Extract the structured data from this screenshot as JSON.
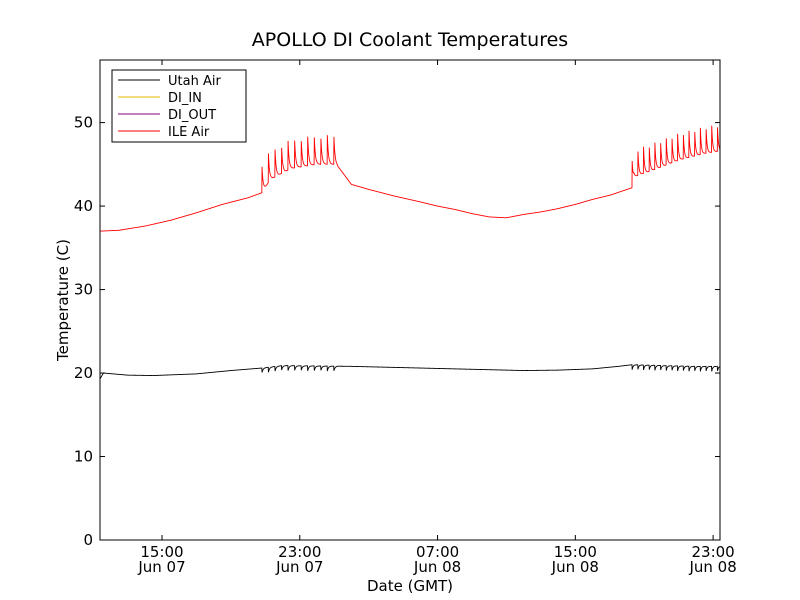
{
  "chart_data": {
    "type": "line",
    "title": "APOLLO DI Coolant Temperatures",
    "xlabel": "Date (GMT)",
    "ylabel": "Temperature (C)",
    "x_units": "hours since Jun 07 00:00 GMT",
    "xlim": [
      11.4,
      47.4
    ],
    "ylim": [
      0,
      57.5
    ],
    "yticks": [
      0,
      10,
      20,
      30,
      40,
      50
    ],
    "xticks": [
      {
        "value": 15,
        "line1": "15:00",
        "line2": "Jun 07"
      },
      {
        "value": 23,
        "line1": "23:00",
        "line2": "Jun 07"
      },
      {
        "value": 31,
        "line1": "07:00",
        "line2": "Jun 08"
      },
      {
        "value": 39,
        "line1": "15:00",
        "line2": "Jun 08"
      },
      {
        "value": 47,
        "line1": "23:00",
        "line2": "Jun 08"
      }
    ],
    "legend_position": "top-left",
    "series": [
      {
        "name": "Utah Air",
        "color": "#000000",
        "base": [
          [
            11.4,
            19.3
          ],
          [
            11.6,
            20.0
          ],
          [
            13.0,
            19.75
          ],
          [
            14.5,
            19.7
          ],
          [
            17,
            19.9
          ],
          [
            19,
            20.3
          ],
          [
            20.8,
            20.6
          ],
          [
            22,
            20.9
          ],
          [
            24,
            20.85
          ],
          [
            26,
            20.8
          ],
          [
            28,
            20.7
          ],
          [
            30,
            20.6
          ],
          [
            32,
            20.5
          ],
          [
            34,
            20.4
          ],
          [
            36,
            20.3
          ],
          [
            38,
            20.35
          ],
          [
            40,
            20.5
          ],
          [
            41.5,
            20.8
          ],
          [
            42.3,
            21.0
          ],
          [
            44,
            20.9
          ],
          [
            46,
            20.8
          ],
          [
            47.4,
            20.8
          ]
        ],
        "cycles": [
          {
            "start": 20.8,
            "end": 25.2,
            "period": 0.38,
            "amplitude": -0.6
          },
          {
            "start": 42.3,
            "end": 47.4,
            "period": 0.33,
            "amplitude": -0.6
          }
        ]
      },
      {
        "name": "DI_IN",
        "color": "#e6b800",
        "base": [],
        "cycles": []
      },
      {
        "name": "DI_OUT",
        "color": "#800080",
        "base": [],
        "cycles": []
      },
      {
        "name": "ILE Air",
        "color": "#ff0000",
        "base": [
          [
            11.4,
            37.0
          ],
          [
            12.5,
            37.1
          ],
          [
            14,
            37.6
          ],
          [
            15.5,
            38.3
          ],
          [
            17,
            39.2
          ],
          [
            18.5,
            40.2
          ],
          [
            20,
            41.0
          ],
          [
            20.8,
            41.6
          ],
          [
            21.3,
            43.2
          ],
          [
            22.5,
            44.5
          ],
          [
            24,
            45.0
          ],
          [
            25,
            45.0
          ],
          [
            25.2,
            44.8
          ],
          [
            26,
            42.6
          ],
          [
            27,
            42.0
          ],
          [
            28.5,
            41.2
          ],
          [
            30,
            40.5
          ],
          [
            31,
            40.0
          ],
          [
            32,
            39.6
          ],
          [
            33,
            39.1
          ],
          [
            34,
            38.7
          ],
          [
            35,
            38.6
          ],
          [
            36,
            39.0
          ],
          [
            37,
            39.3
          ],
          [
            38,
            39.7
          ],
          [
            39,
            40.2
          ],
          [
            40,
            40.8
          ],
          [
            41,
            41.3
          ],
          [
            42.3,
            42.2
          ],
          [
            42.4,
            43.5
          ],
          [
            43.5,
            44.3
          ],
          [
            45,
            45.5
          ],
          [
            46.5,
            46.3
          ],
          [
            47.4,
            46.6
          ]
        ],
        "cycles": [
          {
            "start": 20.8,
            "end": 25.2,
            "period": 0.38,
            "amplitude": 3.5
          },
          {
            "start": 42.3,
            "end": 47.4,
            "period": 0.33,
            "amplitude": 3.2
          }
        ]
      }
    ]
  }
}
